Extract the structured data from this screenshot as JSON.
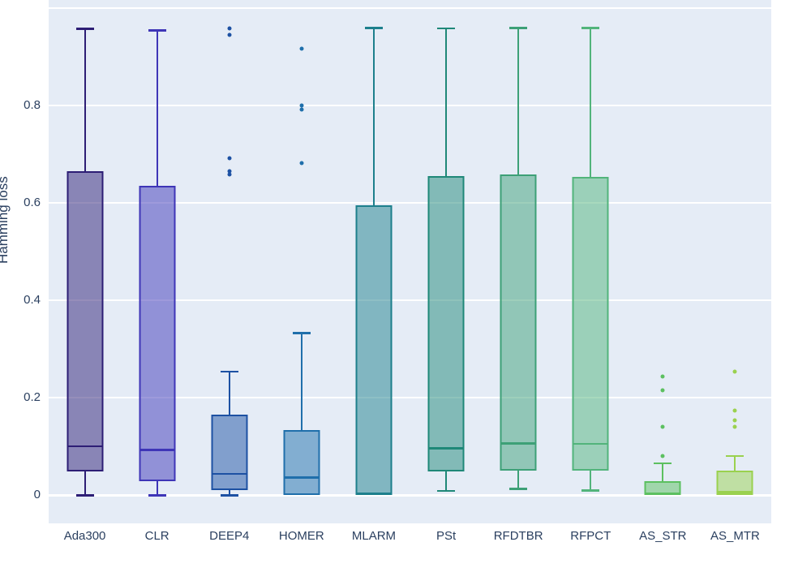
{
  "figure": {
    "kind": "box-plot",
    "page_background": "#ffffff",
    "plot_background": "#e5ecf6",
    "grid_color": "#ffffff",
    "text_color": "#2a3f5f"
  },
  "chart_data": {
    "type": "box",
    "title": "",
    "xlabel": "",
    "ylabel": "Hamming loss",
    "ylim": [
      -0.058,
      1.017
    ],
    "grid": true,
    "grid_values": [
      0,
      0.2,
      0.4,
      0.6,
      0.8,
      1.0
    ],
    "y_ticks": [
      {
        "value": 0,
        "label": "0"
      },
      {
        "value": 0.2,
        "label": "0.2"
      },
      {
        "value": 0.4,
        "label": "0.4"
      },
      {
        "value": 0.6,
        "label": "0.6"
      },
      {
        "value": 0.8,
        "label": "0.8"
      }
    ],
    "categories": [
      "Ada300",
      "CLR",
      "DEEP4",
      "HOMER",
      "MLARM",
      "PSt",
      "RFDTBR",
      "RFPCT",
      "AS_STR",
      "AS_MTR"
    ],
    "series": [
      {
        "name": "Ada300",
        "color": "#2d1e75",
        "min": 0.0,
        "q1": 0.049,
        "median": 0.1,
        "q3": 0.665,
        "max": 0.958,
        "outliers": []
      },
      {
        "name": "CLR",
        "color": "#3e35b7",
        "min": 0.0,
        "q1": 0.028,
        "median": 0.093,
        "q3": 0.636,
        "max": 0.955,
        "outliers": []
      },
      {
        "name": "DEEP4",
        "color": "#1d51a3",
        "min": 0.0,
        "q1": 0.011,
        "median": 0.044,
        "q3": 0.165,
        "max": 0.254,
        "outliers": [
          0.958,
          0.945,
          0.692,
          0.666,
          0.659
        ]
      },
      {
        "name": "HOMER",
        "color": "#1f6fab",
        "min": 0.0,
        "q1": 0.0,
        "median": 0.036,
        "q3": 0.133,
        "max": 0.333,
        "outliers": [
          0.917,
          0.8,
          0.792,
          0.682
        ]
      },
      {
        "name": "MLARM",
        "color": "#1d7f8c",
        "min": 0.0,
        "q1": 0.0,
        "median": 0.003,
        "q3": 0.596,
        "max": 0.96,
        "outliers": []
      },
      {
        "name": "PSt",
        "color": "#1f8878",
        "min": 0.009,
        "q1": 0.048,
        "median": 0.096,
        "q3": 0.656,
        "max": 0.959,
        "outliers": []
      },
      {
        "name": "RFDTBR",
        "color": "#3da077",
        "min": 0.013,
        "q1": 0.051,
        "median": 0.106,
        "q3": 0.658,
        "max": 0.96,
        "outliers": []
      },
      {
        "name": "RFPCT",
        "color": "#52b47b",
        "min": 0.01,
        "q1": 0.051,
        "median": 0.105,
        "q3": 0.654,
        "max": 0.96,
        "outliers": []
      },
      {
        "name": "AS_STR",
        "color": "#5cc060",
        "min": 0.0,
        "q1": 0.0,
        "median": 0.004,
        "q3": 0.028,
        "max": 0.066,
        "outliers": [
          0.244,
          0.215,
          0.14,
          0.08
        ]
      },
      {
        "name": "AS_MTR",
        "color": "#9ad14f",
        "min": 0.0,
        "q1": 0.0,
        "median": 0.006,
        "q3": 0.051,
        "max": 0.081,
        "outliers": [
          0.254,
          0.173,
          0.153,
          0.141
        ]
      }
    ]
  }
}
